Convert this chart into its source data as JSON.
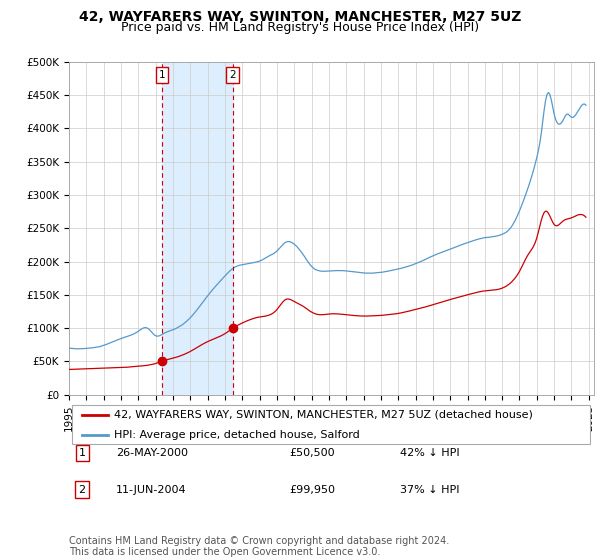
{
  "title": "42, WAYFARERS WAY, SWINTON, MANCHESTER, M27 5UZ",
  "subtitle": "Price paid vs. HM Land Registry's House Price Index (HPI)",
  "ylim": [
    0,
    500000
  ],
  "yticks": [
    0,
    50000,
    100000,
    150000,
    200000,
    250000,
    300000,
    350000,
    400000,
    450000,
    500000
  ],
  "ytick_labels": [
    "£0",
    "£50K",
    "£100K",
    "£150K",
    "£200K",
    "£250K",
    "£300K",
    "£350K",
    "£400K",
    "£450K",
    "£500K"
  ],
  "xlim_start": 1995.0,
  "xlim_end": 2025.3,
  "hpi_color": "#5599cc",
  "price_color": "#cc0000",
  "shade_color": "#ddeeff",
  "legend_label_price": "42, WAYFARERS WAY, SWINTON, MANCHESTER, M27 5UZ (detached house)",
  "legend_label_hpi": "HPI: Average price, detached house, Salford",
  "annotation1_label": "1",
  "annotation1_date": "26-MAY-2000",
  "annotation1_price": "£50,500",
  "annotation1_pct": "42% ↓ HPI",
  "annotation2_label": "2",
  "annotation2_date": "11-JUN-2004",
  "annotation2_price": "£99,950",
  "annotation2_pct": "37% ↓ HPI",
  "footer": "Contains HM Land Registry data © Crown copyright and database right 2024.\nThis data is licensed under the Open Government Licence v3.0.",
  "sale1_x": 2000.38,
  "sale1_y": 50500,
  "sale2_x": 2004.44,
  "sale2_y": 99950,
  "background_color": "#ffffff",
  "grid_color": "#cccccc",
  "title_fontsize": 10,
  "subtitle_fontsize": 9,
  "tick_fontsize": 7.5,
  "legend_fontsize": 8,
  "footer_fontsize": 7
}
